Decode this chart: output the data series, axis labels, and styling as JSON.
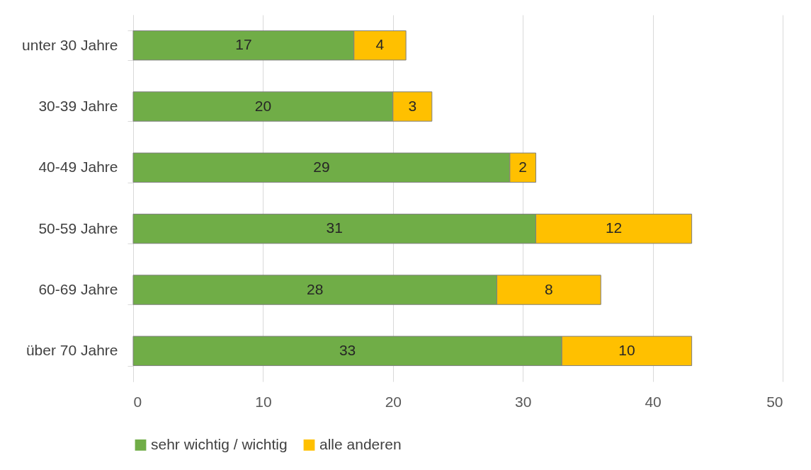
{
  "chart_data": {
    "type": "bar",
    "orientation": "horizontal",
    "stacked": true,
    "categories": [
      "unter 30 Jahre",
      "30-39 Jahre",
      "40-49 Jahre",
      "50-59 Jahre",
      "60-69 Jahre",
      "über 70 Jahre"
    ],
    "series": [
      {
        "name": "sehr wichtig / wichtig",
        "color": "#70ad47",
        "values": [
          17,
          20,
          29,
          31,
          28,
          33
        ]
      },
      {
        "name": "alle anderen",
        "color": "#ffc000",
        "values": [
          4,
          3,
          2,
          12,
          8,
          10
        ]
      }
    ],
    "xlim": [
      0,
      50
    ],
    "xticks": [
      0,
      10,
      20,
      30,
      40,
      50
    ],
    "grid": "x",
    "legend": "bottom",
    "data_labels": true
  }
}
